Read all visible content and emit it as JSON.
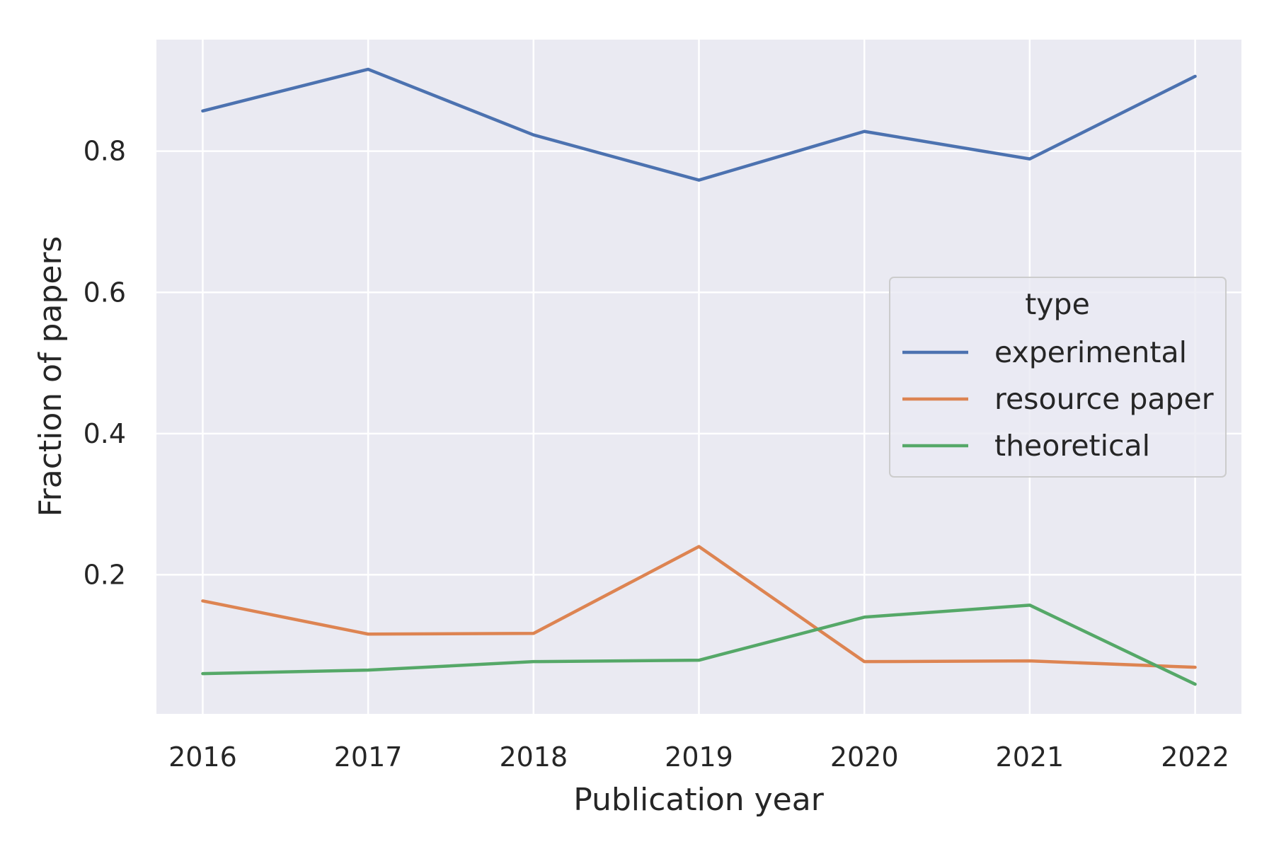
{
  "chart_data": {
    "type": "line",
    "title": "",
    "xlabel": "Publication year",
    "ylabel": "Fraction of papers",
    "x": [
      "2016",
      "2017",
      "2018",
      "2019",
      "2020",
      "2021",
      "2022"
    ],
    "xlim": [
      2015.72,
      2022.28
    ],
    "ylim": [
      0.003,
      0.958
    ],
    "yticks": [
      "0.2",
      "0.4",
      "0.6",
      "0.8"
    ],
    "grid": true,
    "background": "#eaeaf2",
    "legend": {
      "title": "type",
      "placement": "center-right"
    },
    "series": [
      {
        "name": "experimental",
        "color": "#4c72b0",
        "values": [
          0.857,
          0.916,
          0.823,
          0.759,
          0.828,
          0.789,
          0.906
        ]
      },
      {
        "name": "resource paper",
        "color": "#dd8452",
        "values": [
          0.163,
          0.116,
          0.117,
          0.24,
          0.077,
          0.078,
          0.069
        ]
      },
      {
        "name": "theoretical",
        "color": "#55a868",
        "values": [
          0.06,
          0.065,
          0.077,
          0.079,
          0.14,
          0.157,
          0.045
        ]
      }
    ]
  }
}
